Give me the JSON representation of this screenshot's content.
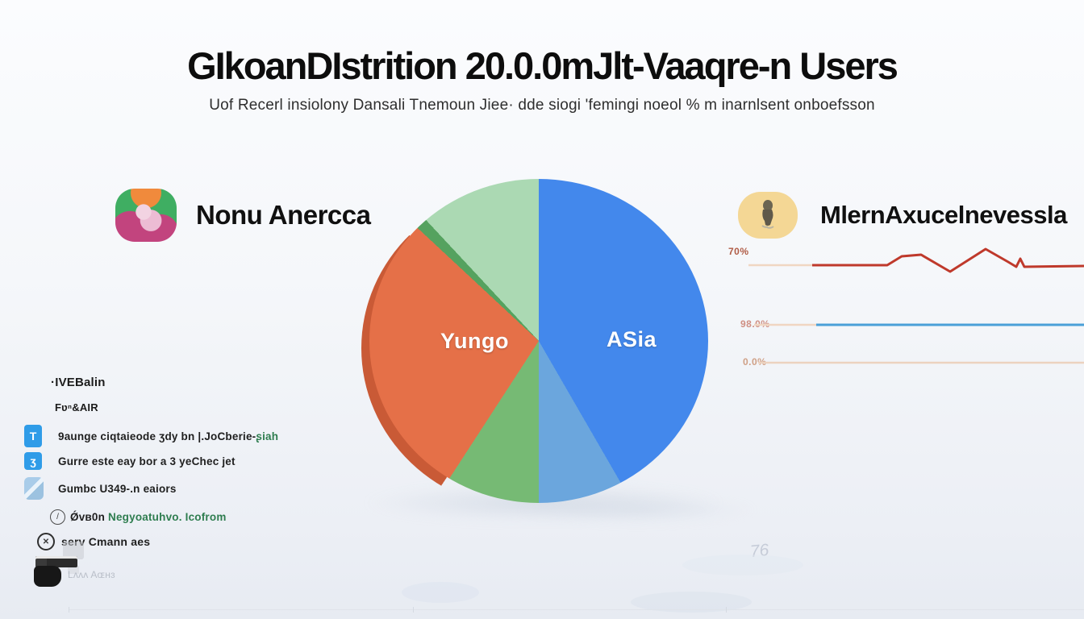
{
  "page": {
    "title": "GIkoanDIstrition 20.0.0mJlt-Vaaqre-n Users",
    "subtitle": "Uof Recerl insiolony Dansali Tnemoun Jiee· dde siogi 'femingi noeol % m inarnlsent onboefsson",
    "background_color": "#f5f7fa"
  },
  "regions": {
    "left": {
      "label": "Nonu Anercca",
      "icon": "north-america-globe-icon"
    },
    "right": {
      "label": "MlernAxucelnevessla",
      "icon": "asia-figure-icon",
      "icon_bg": "#f4d795"
    }
  },
  "legend": {
    "items": [
      {
        "icon": "",
        "text": "·IVEBalin",
        "color": "#1c1c1c"
      },
      {
        "icon": "",
        "text": "Fʋⁿ&AIR",
        "color": "#1c1c1c"
      },
      {
        "icon": "pin-icon",
        "icon_color": "#2f9ce8",
        "text": "9aunge ciqtaieode ʒdy bn |.JoCberie-",
        "text_accent": "ʂiah",
        "accent_color": "#2e7d4f"
      },
      {
        "icon": "globe-icon",
        "icon_color": "#2f9ce8",
        "text": "Gurre este eay bor a 3 yeChec jet",
        "text_accent": "",
        "accent_color": ""
      },
      {
        "icon": "pen-icon",
        "icon_color": "#a9cce9",
        "text": "Gumbc U349-.n eaiors",
        "text_accent": "",
        "accent_color": ""
      },
      {
        "icon": "pencil-circle-icon",
        "text": "Ǿvв0n ",
        "text_accent": "Negyoatuhvo. Icofrom",
        "accent_color": "#2e7d4f"
      },
      {
        "icon": "circle-x-icon",
        "text": "serv Cmann aes",
        "text_accent": "",
        "accent_color": ""
      },
      {
        "icon": "camera-icon",
        "text": "Lʌʌʌ Aɶʜɜ",
        "color": "#b9bec8"
      }
    ]
  },
  "ghost": {
    "text": "76"
  },
  "chart_data": [
    {
      "type": "pie",
      "title": "GIkoanDIstrition 20.0.0mJlt-Vaaqre-n Users",
      "label_left": "Yungo",
      "label_right": "ASia",
      "legend_position": "none",
      "slices": [
        {
          "label": "ASia",
          "value": 41.7,
          "color": "#4388ec",
          "start_deg": 0,
          "end_deg": 150
        },
        {
          "label": "asia-lower-light",
          "value": 8.3,
          "color": "#6ba6dd",
          "start_deg": 150,
          "end_deg": 180
        },
        {
          "label": "green-lower",
          "value": 9.2,
          "color": "#76ba74",
          "start_deg": 180,
          "end_deg": 213
        },
        {
          "label": "Yungo",
          "value": 27.8,
          "color": "#e57048",
          "start_deg": 213,
          "end_deg": 313
        },
        {
          "label": "green-sliver",
          "value": 1.1,
          "color": "#55a25f",
          "start_deg": 313,
          "end_deg": 317
        },
        {
          "label": "green-upper-light",
          "value": 11.9,
          "color": "#abd9b3",
          "start_deg": 317,
          "end_deg": 360
        }
      ],
      "rim": {
        "color": "#c95a36",
        "start_deg": 213,
        "end_deg": 313
      }
    },
    {
      "type": "line",
      "label": "70%",
      "label_color": "#b05c45",
      "lead": {
        "color": "#f0d6c2",
        "points": [
          [
            28,
            34
          ],
          [
            107,
            34
          ]
        ]
      },
      "main": {
        "color": "#bf392b",
        "width": 3,
        "points": [
          [
            107,
            34
          ],
          [
            200,
            34
          ],
          [
            218,
            23
          ],
          [
            242,
            21
          ],
          [
            278,
            42
          ],
          [
            322,
            14
          ],
          [
            350,
            30
          ],
          [
            360,
            36
          ],
          [
            365,
            26
          ],
          [
            370,
            36
          ],
          [
            444,
            35
          ]
        ]
      }
    },
    {
      "type": "line",
      "label": "98.0%",
      "label_color": "#cf8f83",
      "lead": {
        "color": "#f0d6c2",
        "points": [
          [
            35,
            108
          ],
          [
            112,
            108
          ]
        ]
      },
      "main": {
        "color": "#4aa0d8",
        "width": 3,
        "points": [
          [
            112,
            108
          ],
          [
            444,
            108
          ]
        ]
      }
    },
    {
      "type": "line",
      "label": "0.0%",
      "label_color": "#cf9f85",
      "lead": {
        "color": "#ecd2bf",
        "points": [
          [
            40,
            155
          ],
          [
            64,
            155
          ]
        ]
      },
      "main": {
        "color": "#ecd2bf",
        "width": 2.5,
        "points": [
          [
            64,
            155
          ],
          [
            444,
            155
          ]
        ]
      }
    }
  ]
}
